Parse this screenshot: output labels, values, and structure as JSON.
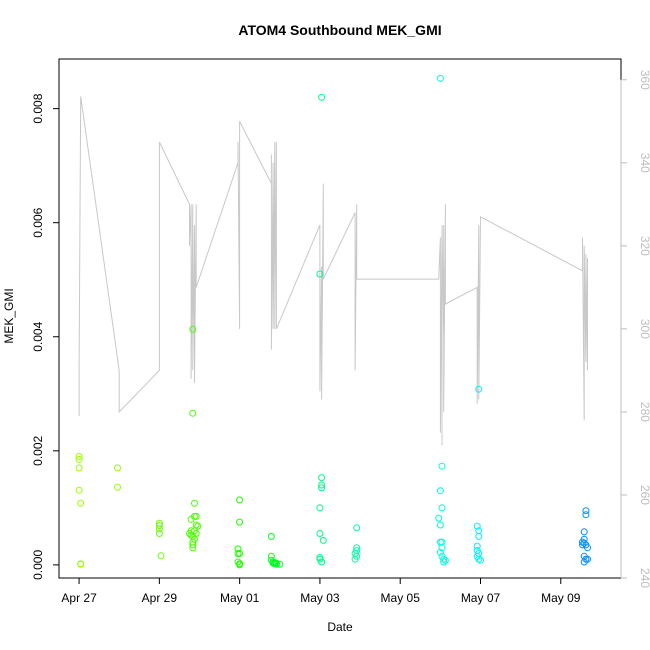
{
  "chart_data": {
    "type": "scatter",
    "title": "ATOM4 Southbound MEK_GMI",
    "xlabel": "Date",
    "ylabel": "MEK_GMI",
    "xlim": [
      "2016-04-26T12:00",
      "2016-05-10T12:00"
    ],
    "ylim": [
      -0.00023,
      0.00887
    ],
    "y2lim": [
      240,
      365
    ],
    "grid": false,
    "x_ticks": [
      {
        "date": "2016-04-27",
        "label": "Apr 27"
      },
      {
        "date": "2016-04-29",
        "label": "Apr 29"
      },
      {
        "date": "2016-05-01",
        "label": "May 01"
      },
      {
        "date": "2016-05-03",
        "label": "May 03"
      },
      {
        "date": "2016-05-05",
        "label": "May 05"
      },
      {
        "date": "2016-05-07",
        "label": "May 07"
      },
      {
        "date": "2016-05-09",
        "label": "May 09"
      }
    ],
    "y_ticks": [
      "0.000",
      "0.002",
      "0.004",
      "0.006",
      "0.008"
    ],
    "y2_ticks": [
      "240",
      "260",
      "280",
      "300",
      "320",
      "340",
      "360"
    ],
    "colors": {
      "line": "#c8c8c8",
      "axis": "#000000",
      "axis_right": "#bdbdbd"
    },
    "points": [
      {
        "t": "2016-04-27T00:00",
        "y": 0.0019,
        "color": "#9cff00"
      },
      {
        "t": "2016-04-27T00:00",
        "y": 0.00185,
        "color": "#9cff00"
      },
      {
        "t": "2016-04-27T00:00",
        "y": 0.0017,
        "color": "#9cff00"
      },
      {
        "t": "2016-04-27T00:00",
        "y": 0.00131,
        "color": "#9cff00"
      },
      {
        "t": "2016-04-27T01:00",
        "y": 0.00108,
        "color": "#9cff00"
      },
      {
        "t": "2016-04-27T01:00",
        "y": 2e-05,
        "color": "#9cff00"
      },
      {
        "t": "2016-04-27T01:00",
        "y": 1e-05,
        "color": "#9cff00"
      },
      {
        "t": "2016-04-27T23:00",
        "y": 0.0017,
        "color": "#94ff00"
      },
      {
        "t": "2016-04-27T23:00",
        "y": 0.00136,
        "color": "#94ff00"
      },
      {
        "t": "2016-04-29T00:00",
        "y": 0.00073,
        "color": "#66ff00"
      },
      {
        "t": "2016-04-29T00:00",
        "y": 0.00069,
        "color": "#66ff00"
      },
      {
        "t": "2016-04-29T00:00",
        "y": 0.00063,
        "color": "#66ff00"
      },
      {
        "t": "2016-04-29T00:00",
        "y": 0.00055,
        "color": "#66ff00"
      },
      {
        "t": "2016-04-29T01:00",
        "y": 0.00016,
        "color": "#66ff00"
      },
      {
        "t": "2016-04-29T20:00",
        "y": 0.00413,
        "color": "#4cff00"
      },
      {
        "t": "2016-04-29T20:00",
        "y": 0.00266,
        "color": "#4cff00"
      },
      {
        "t": "2016-04-29T19:00",
        "y": 0.0008,
        "color": "#4cff00"
      },
      {
        "t": "2016-04-29T19:00",
        "y": 0.0006,
        "color": "#4cff00"
      },
      {
        "t": "2016-04-29T18:00",
        "y": 0.00055,
        "color": "#4cff00"
      },
      {
        "t": "2016-04-29T19:00",
        "y": 0.00052,
        "color": "#4cff00"
      },
      {
        "t": "2016-04-29T20:00",
        "y": 0.0005,
        "color": "#4cff00"
      },
      {
        "t": "2016-04-29T20:00",
        "y": 0.0004,
        "color": "#4cff00"
      },
      {
        "t": "2016-04-29T20:00",
        "y": 0.00035,
        "color": "#4cff00"
      },
      {
        "t": "2016-04-29T20:00",
        "y": 0.0003,
        "color": "#4cff00"
      },
      {
        "t": "2016-04-29T21:00",
        "y": 0.00108,
        "color": "#4cff00"
      },
      {
        "t": "2016-04-29T21:00",
        "y": 0.00085,
        "color": "#4cff00"
      },
      {
        "t": "2016-04-29T22:00",
        "y": 0.00085,
        "color": "#4cff00"
      },
      {
        "t": "2016-04-29T22:00",
        "y": 0.0007,
        "color": "#4cff00"
      },
      {
        "t": "2016-04-29T21:00",
        "y": 0.0006,
        "color": "#4cff00"
      },
      {
        "t": "2016-04-29T22:00",
        "y": 0.00055,
        "color": "#4cff00"
      },
      {
        "t": "2016-04-29T21:00",
        "y": 0.00045,
        "color": "#4cff00"
      },
      {
        "t": "2016-04-29T23:00",
        "y": 0.00068,
        "color": "#4cff00"
      },
      {
        "t": "2016-05-01T00:00",
        "y": 0.00114,
        "color": "#20ff00"
      },
      {
        "t": "2016-05-01T00:00",
        "y": 0.00075,
        "color": "#20ff00"
      },
      {
        "t": "2016-04-30T23:00",
        "y": 0.00028,
        "color": "#20ff00"
      },
      {
        "t": "2016-04-30T23:00",
        "y": 0.0002,
        "color": "#20ff00"
      },
      {
        "t": "2016-05-01T00:00",
        "y": 0.0002,
        "color": "#20ff00"
      },
      {
        "t": "2016-04-30T23:00",
        "y": 5e-05,
        "color": "#20ff00"
      },
      {
        "t": "2016-05-01T00:00",
        "y": 2e-05,
        "color": "#20ff00"
      },
      {
        "t": "2016-05-01T00:00",
        "y": 0.0,
        "color": "#20ff00"
      },
      {
        "t": "2016-05-01T19:00",
        "y": 0.0005,
        "color": "#00ff20"
      },
      {
        "t": "2016-05-01T19:00",
        "y": 0.00015,
        "color": "#00ff20"
      },
      {
        "t": "2016-05-01T19:00",
        "y": 8e-05,
        "color": "#00ff20"
      },
      {
        "t": "2016-05-01T20:00",
        "y": 5e-05,
        "color": "#00ff20"
      },
      {
        "t": "2016-05-01T20:00",
        "y": 3e-05,
        "color": "#00ff20"
      },
      {
        "t": "2016-05-01T21:00",
        "y": 4e-05,
        "color": "#00ff20"
      },
      {
        "t": "2016-05-01T21:00",
        "y": 2e-05,
        "color": "#00ff20"
      },
      {
        "t": "2016-05-01T22:00",
        "y": 3e-05,
        "color": "#00ff20"
      },
      {
        "t": "2016-05-01T22:00",
        "y": 1e-05,
        "color": "#00ff20"
      },
      {
        "t": "2016-05-02T00:00",
        "y": 1e-05,
        "color": "#00ff20"
      },
      {
        "t": "2016-05-03T01:00",
        "y": 0.0082,
        "color": "#00ff88"
      },
      {
        "t": "2016-05-03T00:00",
        "y": 0.0051,
        "color": "#00ff88"
      },
      {
        "t": "2016-05-03T01:00",
        "y": 0.00153,
        "color": "#00ff88"
      },
      {
        "t": "2016-05-03T01:00",
        "y": 0.0014,
        "color": "#00ff88"
      },
      {
        "t": "2016-05-03T01:00",
        "y": 0.00135,
        "color": "#00ff88"
      },
      {
        "t": "2016-05-03T00:00",
        "y": 0.001,
        "color": "#00ff88"
      },
      {
        "t": "2016-05-03T00:00",
        "y": 0.00055,
        "color": "#00ff88"
      },
      {
        "t": "2016-05-03T02:00",
        "y": 0.00043,
        "color": "#00ff88"
      },
      {
        "t": "2016-05-03T00:00",
        "y": 0.00013,
        "color": "#00ff88"
      },
      {
        "t": "2016-05-03T00:00",
        "y": 0.0001,
        "color": "#00ff88"
      },
      {
        "t": "2016-05-03T01:00",
        "y": 5e-05,
        "color": "#00ff88"
      },
      {
        "t": "2016-05-03T22:00",
        "y": 0.00065,
        "color": "#00ffa0"
      },
      {
        "t": "2016-05-03T22:00",
        "y": 0.0003,
        "color": "#00ffa0"
      },
      {
        "t": "2016-05-03T22:00",
        "y": 0.00025,
        "color": "#00ffa0"
      },
      {
        "t": "2016-05-03T21:00",
        "y": 0.0002,
        "color": "#00ffa0"
      },
      {
        "t": "2016-05-03T22:00",
        "y": 0.00015,
        "color": "#00ffa0"
      },
      {
        "t": "2016-05-03T21:00",
        "y": 0.0001,
        "color": "#00ffa0"
      },
      {
        "t": "2016-05-06T00:00",
        "y": 0.00853,
        "color": "#00ffe0"
      },
      {
        "t": "2016-05-06T01:00",
        "y": 0.00173,
        "color": "#00ffe0"
      },
      {
        "t": "2016-05-06T00:00",
        "y": 0.0013,
        "color": "#00ffe0"
      },
      {
        "t": "2016-05-06T01:00",
        "y": 0.001,
        "color": "#00ffe0"
      },
      {
        "t": "2016-05-05T23:00",
        "y": 0.00082,
        "color": "#00ffe0"
      },
      {
        "t": "2016-05-06T00:00",
        "y": 0.0007,
        "color": "#00ffe0"
      },
      {
        "t": "2016-05-06T00:00",
        "y": 0.0004,
        "color": "#00ffe0"
      },
      {
        "t": "2016-05-06T01:00",
        "y": 0.0004,
        "color": "#00ffe0"
      },
      {
        "t": "2016-05-06T01:00",
        "y": 0.0003,
        "color": "#00ffe0"
      },
      {
        "t": "2016-05-06T00:00",
        "y": 0.00022,
        "color": "#00ffe0"
      },
      {
        "t": "2016-05-06T01:00",
        "y": 0.00015,
        "color": "#00ffe0"
      },
      {
        "t": "2016-05-06T02:00",
        "y": 0.0001,
        "color": "#00ffe0"
      },
      {
        "t": "2016-05-06T02:00",
        "y": 5e-05,
        "color": "#00ffe0"
      },
      {
        "t": "2016-05-06T03:00",
        "y": 8e-05,
        "color": "#00ffe0"
      },
      {
        "t": "2016-05-06T23:00",
        "y": 0.00308,
        "color": "#00f0ff"
      },
      {
        "t": "2016-05-06T22:00",
        "y": 0.00068,
        "color": "#00f0ff"
      },
      {
        "t": "2016-05-06T23:00",
        "y": 0.0006,
        "color": "#00f0ff"
      },
      {
        "t": "2016-05-06T23:00",
        "y": 0.0005,
        "color": "#00f0ff"
      },
      {
        "t": "2016-05-06T22:00",
        "y": 0.00033,
        "color": "#00f0ff"
      },
      {
        "t": "2016-05-06T22:00",
        "y": 0.00025,
        "color": "#00f0ff"
      },
      {
        "t": "2016-05-06T23:00",
        "y": 0.0002,
        "color": "#00f0ff"
      },
      {
        "t": "2016-05-06T22:00",
        "y": 0.00015,
        "color": "#00f0ff"
      },
      {
        "t": "2016-05-06T23:00",
        "y": 0.0001,
        "color": "#00f0ff"
      },
      {
        "t": "2016-05-07T00:00",
        "y": 8e-05,
        "color": "#00f0ff"
      },
      {
        "t": "2016-05-09T15:00",
        "y": 0.00095,
        "color": "#0090ff"
      },
      {
        "t": "2016-05-09T15:00",
        "y": 0.00088,
        "color": "#0090ff"
      },
      {
        "t": "2016-05-09T14:00",
        "y": 0.00058,
        "color": "#0090ff"
      },
      {
        "t": "2016-05-09T14:00",
        "y": 0.00045,
        "color": "#0090ff"
      },
      {
        "t": "2016-05-09T13:00",
        "y": 0.0004,
        "color": "#0090ff"
      },
      {
        "t": "2016-05-09T14:00",
        "y": 0.00038,
        "color": "#0090ff"
      },
      {
        "t": "2016-05-09T13:00",
        "y": 0.00035,
        "color": "#0090ff"
      },
      {
        "t": "2016-05-09T15:00",
        "y": 0.00035,
        "color": "#0090ff"
      },
      {
        "t": "2016-05-09T16:00",
        "y": 0.0003,
        "color": "#0090ff"
      },
      {
        "t": "2016-05-09T14:00",
        "y": 0.00015,
        "color": "#0090ff"
      },
      {
        "t": "2016-05-09T15:00",
        "y": 0.0001,
        "color": "#0090ff"
      },
      {
        "t": "2016-05-09T16:00",
        "y": 0.0001,
        "color": "#0090ff"
      },
      {
        "t": "2016-05-09T14:00",
        "y": 5e-05,
        "color": "#0090ff"
      }
    ],
    "line_series": {
      "axis": "right",
      "points": [
        [
          "2016-04-27T00:00",
          279
        ],
        [
          "2016-04-27T00:00",
          291
        ],
        [
          "2016-04-27T01:00",
          356
        ],
        [
          "2016-04-28T00:00",
          290
        ],
        [
          "2016-04-28T00:00",
          280
        ],
        [
          "2016-04-29T00:00",
          290
        ],
        [
          "2016-04-29T00:00",
          345
        ],
        [
          "2016-04-29T18:00",
          330
        ],
        [
          "2016-04-29T18:00",
          320
        ],
        [
          "2016-04-29T19:00",
          330
        ],
        [
          "2016-04-29T19:00",
          288
        ],
        [
          "2016-04-29T20:00",
          330
        ],
        [
          "2016-04-29T20:00",
          290
        ],
        [
          "2016-04-29T21:00",
          325
        ],
        [
          "2016-04-29T21:00",
          287
        ],
        [
          "2016-04-29T22:00",
          330
        ],
        [
          "2016-04-29T22:00",
          310
        ],
        [
          "2016-04-30T23:00",
          340
        ],
        [
          "2016-04-30T23:00",
          345
        ],
        [
          "2016-05-01T00:00",
          300
        ],
        [
          "2016-05-01T00:00",
          345
        ],
        [
          "2016-05-01T00:00",
          350
        ],
        [
          "2016-05-01T19:00",
          335
        ],
        [
          "2016-05-01T19:00",
          342
        ],
        [
          "2016-05-01T19:00",
          295
        ],
        [
          "2016-05-01T20:00",
          340
        ],
        [
          "2016-05-01T20:00",
          300
        ],
        [
          "2016-05-01T21:00",
          345
        ],
        [
          "2016-05-01T21:00",
          300
        ],
        [
          "2016-05-01T22:00",
          345
        ],
        [
          "2016-05-01T22:00",
          300
        ],
        [
          "2016-05-03T00:00",
          325
        ],
        [
          "2016-05-03T00:00",
          285
        ],
        [
          "2016-05-03T01:00",
          315
        ],
        [
          "2016-05-03T01:00",
          283
        ],
        [
          "2016-05-03T02:00",
          335
        ],
        [
          "2016-05-03T02:00",
          312
        ],
        [
          "2016-05-03T21:00",
          328
        ],
        [
          "2016-05-03T21:00",
          290
        ],
        [
          "2016-05-03T22:00",
          330
        ],
        [
          "2016-05-03T22:00",
          312
        ],
        [
          "2016-05-05T23:00",
          312
        ],
        [
          "2016-05-06T00:00",
          322
        ],
        [
          "2016-05-06T00:00",
          275
        ],
        [
          "2016-05-06T01:00",
          323
        ],
        [
          "2016-05-06T01:00",
          272
        ],
        [
          "2016-05-06T01:00",
          325
        ],
        [
          "2016-05-06T02:00",
          298
        ],
        [
          "2016-05-06T02:00",
          325
        ],
        [
          "2016-05-06T02:00",
          280
        ],
        [
          "2016-05-06T03:00",
          330
        ],
        [
          "2016-05-06T03:00",
          306
        ],
        [
          "2016-05-06T22:00",
          310
        ],
        [
          "2016-05-06T22:00",
          282
        ],
        [
          "2016-05-06T23:00",
          325
        ],
        [
          "2016-05-06T23:00",
          283
        ],
        [
          "2016-05-07T00:00",
          327
        ],
        [
          "2016-05-09T13:00",
          314
        ],
        [
          "2016-05-09T13:00",
          322
        ],
        [
          "2016-05-09T14:00",
          278
        ],
        [
          "2016-05-09T14:00",
          320
        ],
        [
          "2016-05-09T15:00",
          292
        ],
        [
          "2016-05-09T15:00",
          318
        ],
        [
          "2016-05-09T16:00",
          290
        ],
        [
          "2016-05-09T16:00",
          317
        ]
      ]
    }
  }
}
